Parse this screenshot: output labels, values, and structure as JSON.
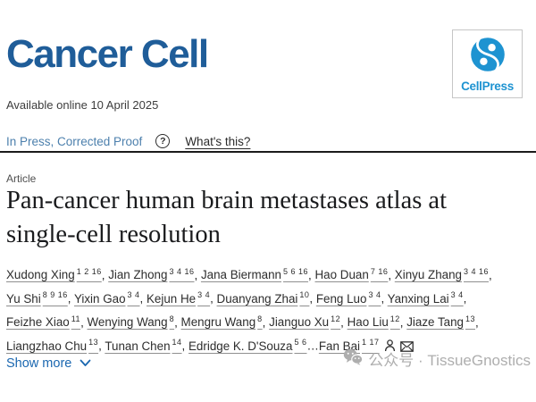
{
  "header": {
    "journal_title": "Cancer Cell",
    "publisher_logo_text": "CellPress",
    "available_online": "Available online 10 April 2025"
  },
  "status": {
    "in_press_label": "In Press, Corrected Proof",
    "help_glyph": "?",
    "whats_this_label": "What's this?"
  },
  "article": {
    "type_label": "Article",
    "title": "Pan-cancer human brain metastases atlas at single-cell resolution",
    "title_lines": [
      "Pan-cancer human brain metastases atlas at",
      "single-cell resolution"
    ]
  },
  "authors": {
    "lines": [
      [
        {
          "name": "Xudong Xing",
          "sup": "1 2 16",
          "sep": ", "
        },
        {
          "name": "Jian Zhong",
          "sup": "3 4 16",
          "sep": ", "
        },
        {
          "name": "Jana Biermann",
          "sup": "5 6 16",
          "sep": ", "
        },
        {
          "name": "Hao Duan",
          "sup": "7 16",
          "sep": ", "
        },
        {
          "name": "Xinyu Zhang",
          "sup": "3 4 16",
          "sep": ","
        }
      ],
      [
        {
          "name": "Yu Shi",
          "sup": "8 9 16",
          "sep": ", "
        },
        {
          "name": "Yixin Gao",
          "sup": "3 4",
          "sep": ", "
        },
        {
          "name": "Kejun He",
          "sup": "3 4",
          "sep": ", "
        },
        {
          "name": "Duanyang Zhai",
          "sup": "10",
          "sep": ", "
        },
        {
          "name": "Feng Luo",
          "sup": "3 4",
          "sep": ", "
        },
        {
          "name": "Yanxing Lai",
          "sup": "3 4",
          "sep": ","
        }
      ],
      [
        {
          "name": "Feizhe Xiao",
          "sup": "11",
          "sep": ", "
        },
        {
          "name": "Wenying Wang",
          "sup": "8",
          "sep": ", "
        },
        {
          "name": "Mengru Wang",
          "sup": "8",
          "sep": ", "
        },
        {
          "name": "Jianguo Xu",
          "sup": "12",
          "sep": ", "
        },
        {
          "name": "Hao Liu",
          "sup": "12",
          "sep": ", "
        },
        {
          "name": "Jiaze Tang",
          "sup": "13",
          "sep": ","
        }
      ],
      [
        {
          "name": "Liangzhao Chu",
          "sup": "13",
          "sep": ", "
        },
        {
          "name": "Tunan Chen",
          "sup": "14",
          "sep": ", "
        },
        {
          "name": "Edridge K. D'Souza",
          "sup": "5 6",
          "sep": ""
        },
        {
          "name": "Fan Bai",
          "sup": "1 17",
          "sep": "",
          "prefix": "…",
          "profile_icon": "author-profile-icon",
          "email_icon": "email-author-icon"
        }
      ]
    ]
  },
  "actions": {
    "show_more_label": "Show more",
    "chevron_icon": "chevron-down-icon"
  },
  "watermark": {
    "icon": "wechat-icon",
    "text": "公众号 · TissueGnostics"
  },
  "colors": {
    "journal_blue": "#1f5d99",
    "cellpress_blue": "#1e93d1",
    "in_press_blue": "#4d80ad",
    "show_more_blue": "#1a67b0",
    "watermark_gray": "#aeaeae"
  }
}
